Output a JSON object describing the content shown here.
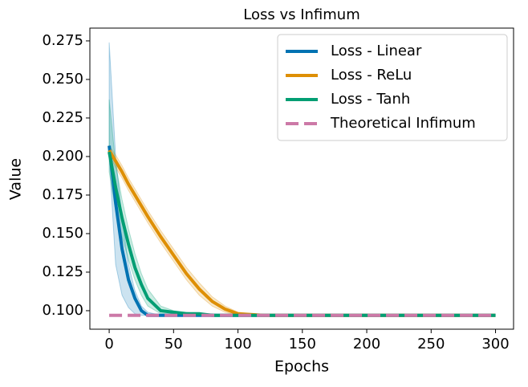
{
  "chart_data": {
    "type": "line",
    "title": "Loss vs Infimum",
    "x_label": "Epochs",
    "y_label": "Value",
    "x": [
      0,
      5,
      10,
      15,
      20,
      25,
      30,
      40,
      50,
      60,
      70,
      80,
      90,
      100,
      120,
      150,
      200,
      250,
      300
    ],
    "series": [
      {
        "name": "Loss - Linear",
        "color": "#0173b2",
        "values": [
          0.207,
          0.17,
          0.14,
          0.12,
          0.108,
          0.1,
          0.097,
          0.097,
          0.097,
          0.097,
          0.097,
          0.097,
          0.097,
          0.097,
          0.097,
          0.097,
          0.097,
          0.097,
          0.097
        ],
        "upper": [
          0.274,
          0.2,
          0.16,
          0.13,
          0.113,
          0.103,
          0.099,
          0.097,
          0.097,
          0.097,
          0.097,
          0.097,
          0.097,
          0.097,
          0.097,
          0.097,
          0.097,
          0.097,
          0.097
        ],
        "lower": [
          0.2,
          0.13,
          0.11,
          0.102,
          0.098,
          0.097,
          0.097,
          0.097,
          0.097,
          0.097,
          0.097,
          0.097,
          0.097,
          0.097,
          0.097,
          0.097,
          0.097,
          0.097,
          0.097
        ]
      },
      {
        "name": "Loss - ReLu",
        "color": "#de8f05",
        "values": [
          0.204,
          0.197,
          0.19,
          0.182,
          0.175,
          0.168,
          0.161,
          0.148,
          0.136,
          0.124,
          0.114,
          0.106,
          0.101,
          0.098,
          0.097,
          0.097,
          0.097,
          0.097,
          0.097
        ],
        "upper": [
          0.207,
          0.201,
          0.194,
          0.186,
          0.179,
          0.172,
          0.165,
          0.152,
          0.14,
          0.128,
          0.118,
          0.109,
          0.103,
          0.099,
          0.097,
          0.097,
          0.097,
          0.097,
          0.097
        ],
        "lower": [
          0.201,
          0.193,
          0.186,
          0.178,
          0.171,
          0.164,
          0.157,
          0.144,
          0.132,
          0.12,
          0.11,
          0.103,
          0.099,
          0.097,
          0.097,
          0.097,
          0.097,
          0.097,
          0.097
        ]
      },
      {
        "name": "Loss - Tanh",
        "color": "#029e73",
        "values": [
          0.203,
          0.18,
          0.16,
          0.143,
          0.128,
          0.117,
          0.108,
          0.1,
          0.099,
          0.098,
          0.098,
          0.097,
          0.097,
          0.097,
          0.097,
          0.097,
          0.097,
          0.097,
          0.097
        ],
        "upper": [
          0.237,
          0.195,
          0.172,
          0.153,
          0.137,
          0.124,
          0.114,
          0.103,
          0.1,
          0.099,
          0.098,
          0.098,
          0.097,
          0.097,
          0.097,
          0.097,
          0.097,
          0.097,
          0.097
        ],
        "lower": [
          0.19,
          0.165,
          0.148,
          0.133,
          0.12,
          0.11,
          0.103,
          0.098,
          0.098,
          0.097,
          0.097,
          0.097,
          0.097,
          0.097,
          0.097,
          0.097,
          0.097,
          0.097,
          0.097
        ]
      },
      {
        "name": "Theoretical Infimum",
        "color": "#cc79a7",
        "style": "dashed",
        "values": [
          0.097,
          0.097,
          0.097,
          0.097,
          0.097,
          0.097,
          0.097,
          0.097,
          0.097,
          0.097,
          0.097,
          0.097,
          0.097,
          0.097,
          0.097,
          0.097,
          0.097,
          0.097,
          0.097
        ]
      }
    ],
    "xlim": [
      -15,
      314
    ],
    "ylim": [
      0.088,
      0.2833
    ],
    "xticks": [
      0,
      50,
      100,
      150,
      200,
      250,
      300
    ],
    "yticks": [
      {
        "value": 0.1,
        "label": "0.100"
      },
      {
        "value": 0.125,
        "label": "0.125"
      },
      {
        "value": 0.15,
        "label": "0.150"
      },
      {
        "value": 0.175,
        "label": "0.175"
      },
      {
        "value": 0.2,
        "label": "0.200"
      },
      {
        "value": 0.225,
        "label": "0.225"
      },
      {
        "value": 0.25,
        "label": "0.250"
      },
      {
        "value": 0.275,
        "label": "0.275"
      }
    ],
    "legend": "upper right"
  }
}
